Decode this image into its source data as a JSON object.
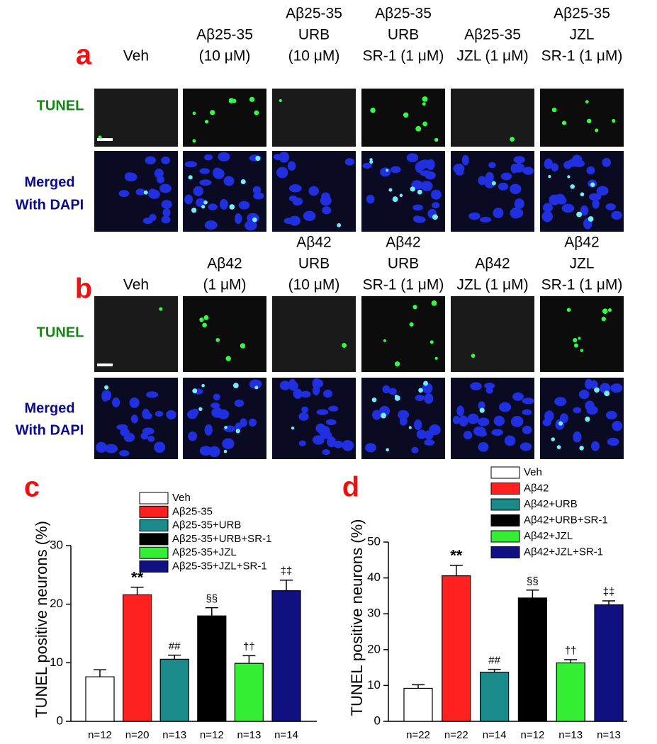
{
  "panels": [
    {
      "label": "a",
      "columns": [
        [
          "Veh"
        ],
        [
          "Aβ25-35",
          "(10 μM)"
        ],
        [
          "Aβ25-35",
          "URB",
          "(10 μM)"
        ],
        [
          "Aβ25-35",
          "URB",
          "SR-1 (1 μM)"
        ],
        [
          "Aβ25-35",
          "JZL (1 μM)"
        ],
        [
          "Aβ25-35",
          "JZL",
          "SR-1 (1 μM)"
        ]
      ],
      "rows": [
        [
          "TUNEL"
        ],
        [
          "Merged",
          "With DAPI"
        ]
      ]
    },
    {
      "label": "b",
      "columns": [
        [
          "Veh"
        ],
        [
          "Aβ42",
          "(1 μM)"
        ],
        [
          "Aβ42",
          "URB",
          "(10 μM)"
        ],
        [
          "Aβ42",
          "URB",
          "SR-1 (1 μM)"
        ],
        [
          "Aβ42",
          "JZL (1 μM)"
        ],
        [
          "Aβ42",
          "JZL",
          "SR-1 (1 μM)"
        ]
      ],
      "rows": [
        [
          "TUNEL"
        ],
        [
          "Merged",
          "With DAPI"
        ]
      ]
    }
  ],
  "chart_data": [
    {
      "type": "bar",
      "panel_label": "c",
      "ylabel": "TUNEL positive neurons (%)",
      "categories": [
        "Veh",
        "Aβ25-35",
        "Aβ25-35+URB",
        "Aβ25-35+URB+SR-1",
        "Aβ25-35+JZL",
        "Aβ25-35+JZL+SR-1"
      ],
      "values": [
        7.6,
        21.6,
        10.6,
        18.0,
        9.9,
        22.3
      ],
      "errors": [
        1.2,
        1.3,
        0.7,
        1.4,
        1.3,
        1.8
      ],
      "colors": [
        "#ffffff",
        "#ff2020",
        "#1a8a8a",
        "#000000",
        "#33ee33",
        "#101080"
      ],
      "n_labels": [
        "n=12",
        "n=20",
        "n=13",
        "n=12",
        "n=13",
        "n=14"
      ],
      "annotations": [
        null,
        "**",
        "##",
        "§§",
        "††",
        "‡‡"
      ],
      "ylim": [
        0,
        30
      ],
      "yticks": [
        0,
        10,
        20,
        30
      ]
    },
    {
      "type": "bar",
      "panel_label": "d",
      "ylabel": "TUNEL positive neurons (%)",
      "categories": [
        "Veh",
        "Aβ42",
        "Aβ42+URB",
        "Aβ42+URB+SR-1",
        "Aβ42+JZL",
        "Aβ42+JZL+SR-1"
      ],
      "values": [
        9.2,
        40.6,
        13.7,
        34.4,
        16.3,
        32.5
      ],
      "errors": [
        1.0,
        2.9,
        0.8,
        2.2,
        0.9,
        1.1
      ],
      "colors": [
        "#ffffff",
        "#ff2020",
        "#1a8a8a",
        "#000000",
        "#33ee33",
        "#101080"
      ],
      "n_labels": [
        "n=22",
        "n=22",
        "n=14",
        "n=12",
        "n=13",
        "n=13"
      ],
      "annotations": [
        null,
        "**",
        "##",
        "§§",
        "††",
        "‡‡"
      ],
      "ylim": [
        0,
        50
      ],
      "yticks": [
        0,
        10,
        20,
        30,
        40,
        50
      ]
    }
  ]
}
